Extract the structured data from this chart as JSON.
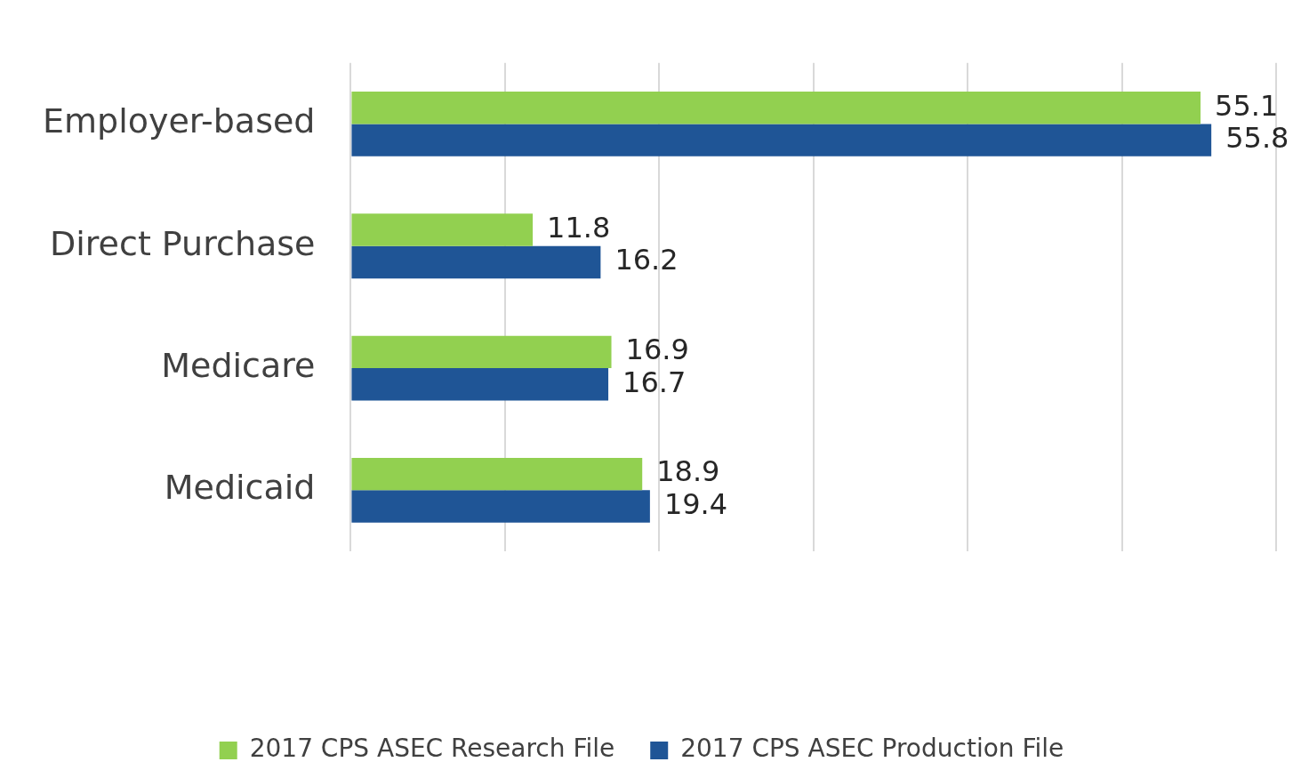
{
  "chart_data": {
    "type": "bar",
    "orientation": "horizontal",
    "categories": [
      "Employer-based",
      "Direct Purchase",
      "Medicare",
      "Medicaid"
    ],
    "series": [
      {
        "name": "2017 CPS ASEC Research File",
        "color": "#92d050",
        "values": [
          55.1,
          11.8,
          16.9,
          18.9
        ]
      },
      {
        "name": "2017 CPS ASEC Production File",
        "color": "#1f5596",
        "values": [
          55.8,
          16.2,
          16.7,
          19.4
        ]
      }
    ],
    "xlim": [
      0,
      60
    ],
    "xticks": [
      {
        "value": 0,
        "label": null
      },
      {
        "value": 10,
        "label": null
      },
      {
        "value": 20,
        "label": null
      },
      {
        "value": 30,
        "label": null
      },
      {
        "value": 40,
        "label": null
      },
      {
        "value": 50,
        "label": null
      },
      {
        "value": 60,
        "label": null
      }
    ],
    "grid": "x",
    "tick_labels": "y",
    "data_labels": true,
    "legend": "bottom"
  }
}
